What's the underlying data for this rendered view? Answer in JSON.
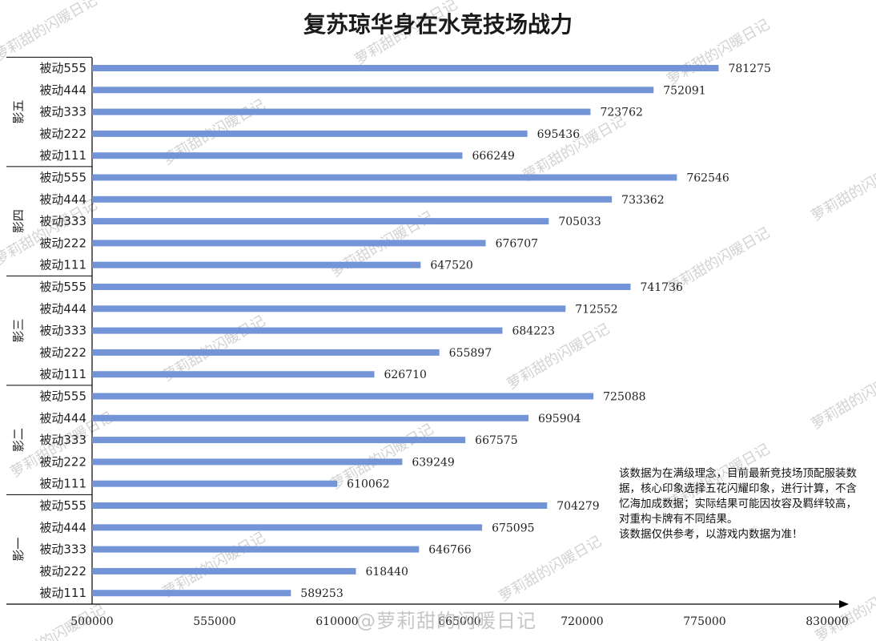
{
  "chart_data": {
    "type": "bar",
    "orientation": "horizontal",
    "title": "复苏琼华身在水竞技场战力",
    "xlim": [
      500000,
      830000
    ],
    "xticks": [
      "500000",
      "555000",
      "610000",
      "665000",
      "720000",
      "775000",
      "830000"
    ],
    "grid": false,
    "bar_color": "#7395d8",
    "groups": [
      {
        "name": "影五",
        "bars": [
          {
            "label": "被动555",
            "value": 781275
          },
          {
            "label": "被动444",
            "value": 752091
          },
          {
            "label": "被动333",
            "value": 723762
          },
          {
            "label": "被动222",
            "value": 695436
          },
          {
            "label": "被动111",
            "value": 666249
          }
        ]
      },
      {
        "name": "影四",
        "bars": [
          {
            "label": "被动555",
            "value": 762546
          },
          {
            "label": "被动444",
            "value": 733362
          },
          {
            "label": "被动333",
            "value": 705033
          },
          {
            "label": "被动222",
            "value": 676707
          },
          {
            "label": "被动111",
            "value": 647520
          }
        ]
      },
      {
        "name": "影三",
        "bars": [
          {
            "label": "被动555",
            "value": 741736
          },
          {
            "label": "被动444",
            "value": 712552
          },
          {
            "label": "被动333",
            "value": 684223
          },
          {
            "label": "被动222",
            "value": 655897
          },
          {
            "label": "被动111",
            "value": 626710
          }
        ]
      },
      {
        "name": "影二",
        "bars": [
          {
            "label": "被动555",
            "value": 725088
          },
          {
            "label": "被动444",
            "value": 695904
          },
          {
            "label": "被动333",
            "value": 667575
          },
          {
            "label": "被动222",
            "value": 639249
          },
          {
            "label": "被动111",
            "value": 610062
          }
        ]
      },
      {
        "name": "影一",
        "bars": [
          {
            "label": "被动555",
            "value": 704279
          },
          {
            "label": "被动444",
            "value": 675095
          },
          {
            "label": "被动333",
            "value": 646766
          },
          {
            "label": "被动222",
            "value": 618440
          },
          {
            "label": "被动111",
            "value": 589253
          }
        ]
      }
    ]
  },
  "note": {
    "line1": "该数据为在满级理念，目前最新竞技场顶配服装数据，核心印象选择五花闪耀印象，进行计算，不含忆海加成数据；实际结果可能因妆容及羁绊较高，对重构卡牌有不同结果。",
    "line2": "该数据仅供参考，以游戏内数据为准！"
  },
  "watermark": {
    "text": "萝莉甜的闪暖日记",
    "footer": "@萝莉甜的闪暖日记"
  }
}
